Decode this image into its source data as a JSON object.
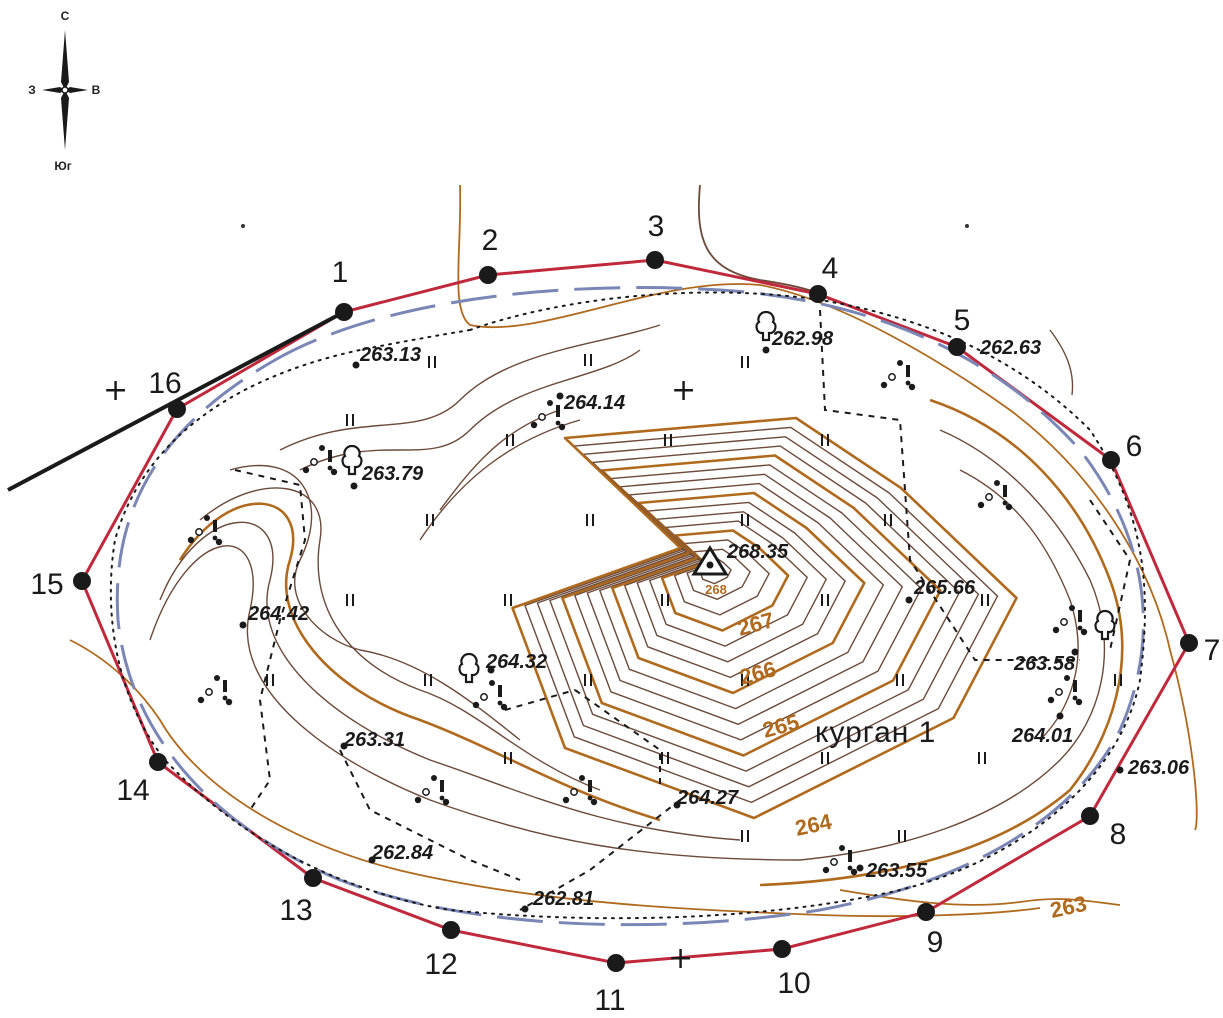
{
  "compass": {
    "north": "С",
    "south": "Юг",
    "west": "З",
    "east": "В"
  },
  "title": "курган 1",
  "summit": {
    "elevation": "268.35",
    "marker": "triangulation-point",
    "sub_label": "268"
  },
  "contour_labels": [
    "267",
    "266",
    "265",
    "264",
    "263"
  ],
  "vertices": [
    "1",
    "2",
    "3",
    "4",
    "5",
    "6",
    "7",
    "8",
    "9",
    "10",
    "11",
    "12",
    "13",
    "14",
    "15",
    "16"
  ],
  "spot_heights": [
    "263.13",
    "264.14",
    "262.98",
    "262.63",
    "263.79",
    "264.42",
    "264.32",
    "263.31",
    "262.84",
    "262.81",
    "264.27",
    "265.66",
    "263.58",
    "264.01",
    "263.06",
    "263.55"
  ],
  "colors": {
    "boundary": "#c0283c",
    "contour_index": "#b06a1e",
    "contour": "#6b4a3a",
    "dashed_outline": "#7a86b5",
    "ink": "#1a1a1a"
  }
}
